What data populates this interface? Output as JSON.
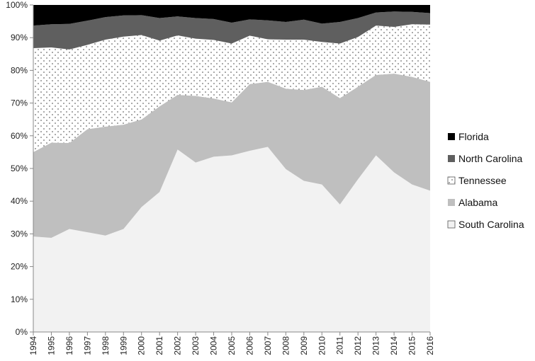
{
  "chart_data": {
    "type": "area",
    "stacked": true,
    "percent": true,
    "categories": [
      "1994",
      "1995",
      "1996",
      "1997",
      "1998",
      "1999",
      "2000",
      "2001",
      "2002",
      "2003",
      "2004",
      "2005",
      "2006",
      "2007",
      "2008",
      "2009",
      "2010",
      "2011",
      "2012",
      "2013",
      "2014",
      "2015",
      "2016"
    ],
    "ylim": [
      0,
      100
    ],
    "yticks": [
      "0%",
      "10%",
      "20%",
      "30%",
      "40%",
      "50%",
      "60%",
      "70%",
      "80%",
      "90%",
      "100%"
    ],
    "grid": false,
    "legend_position": "right",
    "series": [
      {
        "name": "South Carolina",
        "color": "#f2f2f2",
        "pattern": "none",
        "values": [
          29.2,
          28.8,
          31.5,
          30.5,
          29.5,
          31.5,
          38.2,
          42.8,
          55.8,
          51.8,
          53.6,
          54.0,
          55.4,
          56.6,
          49.8,
          46.2,
          45.1,
          39.0,
          46.7,
          54.0,
          48.8,
          45.1,
          43.2
        ]
      },
      {
        "name": "Alabama",
        "color": "#bfbfbf",
        "pattern": "none",
        "values": [
          25.8,
          29.1,
          26.3,
          31.5,
          33.3,
          31.9,
          26.8,
          26.2,
          16.7,
          20.4,
          17.8,
          16.2,
          20.4,
          19.9,
          24.6,
          27.8,
          29.9,
          32.5,
          28.3,
          24.6,
          30.2,
          32.9,
          33.3
        ]
      },
      {
        "name": "Tennessee",
        "color": "#ffffff",
        "pattern": "dots",
        "values": [
          31.8,
          29.1,
          28.6,
          25.8,
          26.6,
          26.9,
          25.8,
          20.1,
          18.2,
          17.5,
          17.9,
          18.0,
          14.8,
          13.0,
          15.0,
          15.4,
          13.7,
          16.7,
          15.2,
          15.1,
          14.3,
          16.1,
          17.5
        ]
      },
      {
        "name": "North Carolina",
        "color": "#5f5f5f",
        "pattern": "none",
        "values": [
          6.9,
          7.1,
          7.8,
          7.4,
          6.9,
          6.5,
          6.1,
          6.9,
          5.8,
          6.3,
          6.4,
          6.4,
          5.0,
          5.8,
          5.4,
          6.1,
          5.6,
          6.6,
          5.8,
          4.0,
          4.7,
          3.8,
          3.5
        ]
      },
      {
        "name": "Florida",
        "color": "#000000",
        "pattern": "none",
        "values": [
          6.3,
          5.9,
          5.8,
          4.8,
          3.7,
          3.2,
          3.1,
          4.0,
          3.5,
          4.0,
          4.3,
          5.4,
          4.4,
          4.7,
          5.2,
          4.5,
          5.7,
          5.2,
          4.0,
          2.3,
          2.0,
          2.1,
          2.5
        ]
      }
    ]
  }
}
